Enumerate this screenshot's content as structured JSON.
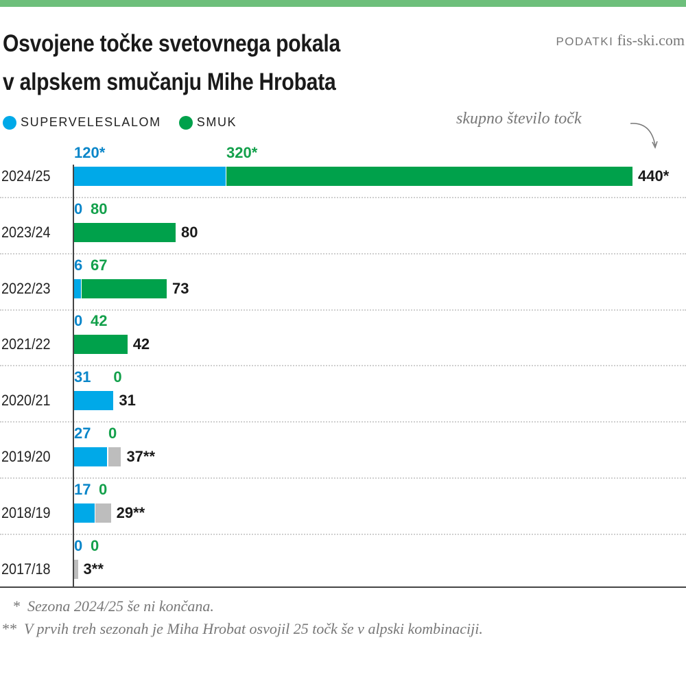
{
  "header": {
    "title_line1": "Osvojene točke svetovnega pokala",
    "title_line2": "v alpskem smučanju Mihe Hrobata",
    "source_label": "PODATKI",
    "source_value": "fis-ski.com"
  },
  "legend": [
    {
      "label": "SUPERVELESLALOM",
      "color": "#00a9e8"
    },
    {
      "label": "SMUK",
      "color": "#00a14b"
    }
  ],
  "annotation": "skupno število točk",
  "colors": {
    "super_g": "#00a9e8",
    "downhill": "#00a14b",
    "other": "#bdbdbd",
    "super_g_label": "#0a86c9",
    "downhill_label": "#13a04b",
    "accent_bar": "#6dbf7b"
  },
  "chart_data": {
    "type": "bar",
    "orientation": "horizontal",
    "stacked": true,
    "categories": [
      "2024/25",
      "2023/24",
      "2022/23",
      "2021/22",
      "2020/21",
      "2019/20",
      "2018/19",
      "2017/18"
    ],
    "series": [
      {
        "name": "SUPERVELESLALOM",
        "values": [
          120,
          0,
          6,
          0,
          31,
          27,
          17,
          0
        ],
        "labels": [
          "120*",
          "0",
          "6",
          "0",
          "31",
          "27",
          "17",
          "0"
        ]
      },
      {
        "name": "SMUK",
        "values": [
          320,
          80,
          67,
          42,
          0,
          0,
          0,
          0
        ],
        "labels": [
          "320*",
          "80",
          "67",
          "42",
          "0",
          "0",
          "0",
          "0"
        ]
      },
      {
        "values": [
          0,
          0,
          0,
          0,
          0,
          10,
          12,
          3
        ]
      }
    ],
    "totals": [
      440,
      80,
      73,
      42,
      31,
      37,
      29,
      3
    ],
    "total_labels": [
      "440*",
      "80",
      "73",
      "42",
      "31",
      "37**",
      "29**",
      "3**"
    ],
    "xlim": [
      0,
      440
    ],
    "grid": false
  },
  "footnotes": [
    {
      "marker": "*",
      "text": "Sezona 2024/25 še ni končana."
    },
    {
      "marker": "**",
      "text": "V prvih treh sezonah je Miha Hrobat osvojil 25 točk še v alpski kombinaciji."
    }
  ]
}
